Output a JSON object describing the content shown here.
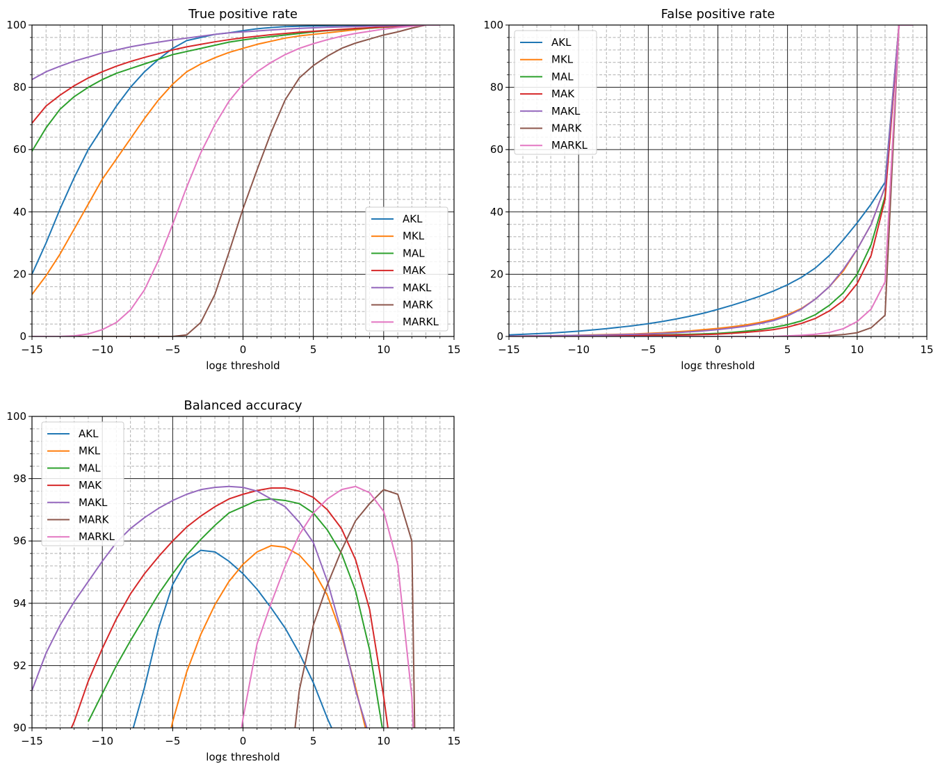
{
  "figure": {
    "colors": {
      "AKL": "#1f77b4",
      "MKL": "#ff7f0e",
      "MAL": "#2ca02c",
      "MAK": "#d62728",
      "MAKL": "#9467bd",
      "MARK": "#8c564b",
      "MARKL": "#e377c2"
    }
  },
  "chart_data": [
    {
      "type": "line",
      "title": "True positive rate",
      "xlabel": "logε threshold",
      "ylabel": "",
      "xlim": [
        -15,
        15
      ],
      "ylim": [
        0,
        100
      ],
      "xticks": [
        -15,
        -10,
        -5,
        0,
        5,
        10,
        15
      ],
      "yticks": [
        0,
        20,
        40,
        60,
        80,
        100
      ],
      "grid": "major solid, minor dashed",
      "legend": "lower right",
      "x": [
        -15,
        -14,
        -13,
        -12,
        -11,
        -10,
        -9,
        -8,
        -7,
        -6,
        -5,
        -4,
        -3,
        -2,
        -1,
        0,
        1,
        2,
        3,
        4,
        5,
        6,
        7,
        8,
        9,
        10,
        11,
        12,
        13,
        14
      ],
      "series": [
        {
          "name": "AKL",
          "values": [
            20,
            30,
            41,
            51,
            60,
            67,
            74,
            80,
            85,
            89,
            92.5,
            95,
            96,
            97,
            97.5,
            98.2,
            98.8,
            99.2,
            99.5,
            99.6,
            99.7,
            99.8,
            99.85,
            99.9,
            99.9,
            99.95,
            100,
            100,
            100,
            100
          ]
        },
        {
          "name": "MKL",
          "values": [
            13.5,
            19.5,
            26.5,
            34.5,
            42.5,
            50.5,
            57,
            63.5,
            70,
            76,
            81,
            85,
            87.5,
            89.5,
            91.2,
            92.5,
            93.8,
            94.8,
            95.8,
            96.5,
            97,
            97.5,
            98,
            98.5,
            99,
            99.3,
            99.6,
            99.8,
            100,
            100
          ]
        },
        {
          "name": "MAL",
          "values": [
            59.5,
            67,
            73,
            77,
            80,
            82.5,
            84.5,
            86,
            87.5,
            89,
            90.5,
            91.5,
            92.5,
            93.5,
            94.5,
            95.2,
            95.8,
            96.3,
            96.8,
            97.3,
            97.8,
            98.2,
            98.5,
            98.8,
            99,
            99.3,
            99.5,
            99.8,
            100,
            100
          ]
        },
        {
          "name": "MAK",
          "values": [
            68.5,
            74,
            77.5,
            80.5,
            83,
            85,
            86.8,
            88.3,
            89.6,
            90.8,
            92,
            93,
            93.8,
            94.6,
            95.3,
            95.9,
            96.4,
            96.9,
            97.3,
            97.7,
            98,
            98.3,
            98.6,
            98.9,
            99.1,
            99.4,
            99.6,
            99.8,
            100,
            100
          ]
        },
        {
          "name": "MAKL",
          "values": [
            82.5,
            85,
            86.8,
            88.4,
            89.7,
            91,
            92,
            93,
            93.8,
            94.5,
            95.2,
            95.8,
            96.4,
            97,
            97.5,
            97.8,
            98.1,
            98.4,
            98.7,
            98.9,
            99.1,
            99.3,
            99.4,
            99.5,
            99.6,
            99.7,
            99.8,
            99.9,
            100,
            100
          ]
        },
        {
          "name": "MARK",
          "values": [
            0,
            0,
            0,
            0,
            0,
            0,
            0,
            0,
            0,
            0,
            0,
            0.5,
            4.5,
            13.5,
            27,
            41,
            53.5,
            65.5,
            76,
            83,
            87,
            90,
            92.5,
            94.2,
            95.5,
            96.8,
            97.8,
            99,
            100,
            100
          ]
        },
        {
          "name": "MARKL",
          "values": [
            0,
            0,
            0,
            0.2,
            0.8,
            2.2,
            4.5,
            8.5,
            15,
            24.5,
            36,
            48,
            59,
            68,
            75.5,
            81,
            85,
            88,
            90.5,
            92.5,
            94,
            95.3,
            96.4,
            97.3,
            98,
            98.7,
            99.2,
            99.6,
            100,
            100
          ]
        }
      ]
    },
    {
      "type": "line",
      "title": "False positive rate",
      "xlabel": "logε threshold",
      "ylabel": "",
      "xlim": [
        -15,
        15
      ],
      "ylim": [
        0,
        100
      ],
      "xticks": [
        -15,
        -10,
        -5,
        0,
        5,
        10,
        15
      ],
      "yticks": [
        0,
        20,
        40,
        60,
        80,
        100
      ],
      "grid": "major solid, minor dashed",
      "legend": "upper left",
      "x": [
        -15,
        -14,
        -13,
        -12,
        -11,
        -10,
        -9,
        -8,
        -7,
        -6,
        -5,
        -4,
        -3,
        -2,
        -1,
        0,
        1,
        2,
        3,
        4,
        5,
        6,
        7,
        8,
        9,
        10,
        11,
        12,
        13,
        14
      ],
      "series": [
        {
          "name": "AKL",
          "values": [
            0.5,
            0.7,
            0.9,
            1.1,
            1.4,
            1.7,
            2.1,
            2.5,
            3,
            3.5,
            4.1,
            4.8,
            5.6,
            6.5,
            7.5,
            8.7,
            10,
            11.4,
            12.9,
            14.6,
            16.6,
            19,
            22,
            26,
            31,
            36.5,
            42.5,
            49.5,
            100,
            100
          ]
        },
        {
          "name": "MKL",
          "values": [
            0.1,
            0.15,
            0.2,
            0.25,
            0.3,
            0.4,
            0.5,
            0.6,
            0.7,
            0.8,
            1,
            1.2,
            1.5,
            1.8,
            2.2,
            2.6,
            3.1,
            3.7,
            4.5,
            5.5,
            7,
            9,
            12,
            16,
            21,
            28,
            36,
            48,
            100,
            100
          ]
        },
        {
          "name": "MAL",
          "values": [
            0.05,
            0.07,
            0.1,
            0.13,
            0.17,
            0.2,
            0.25,
            0.3,
            0.35,
            0.4,
            0.45,
            0.5,
            0.6,
            0.7,
            0.85,
            1,
            1.3,
            1.7,
            2.2,
            2.9,
            3.8,
            5,
            7,
            10,
            14,
            20,
            29.5,
            45,
            100,
            100
          ]
        },
        {
          "name": "MAK",
          "values": [
            0.05,
            0.06,
            0.08,
            0.1,
            0.12,
            0.15,
            0.18,
            0.22,
            0.26,
            0.3,
            0.35,
            0.4,
            0.45,
            0.5,
            0.6,
            0.75,
            1,
            1.3,
            1.7,
            2.2,
            3,
            4.2,
            5.8,
            8.2,
            11.5,
            17,
            26,
            44,
            100,
            100
          ]
        },
        {
          "name": "MAKL",
          "values": [
            0.1,
            0.15,
            0.2,
            0.25,
            0.3,
            0.35,
            0.4,
            0.5,
            0.6,
            0.7,
            0.8,
            1,
            1.2,
            1.5,
            1.8,
            2.2,
            2.7,
            3.3,
            4.1,
            5.1,
            6.6,
            8.8,
            12,
            16,
            21.5,
            28,
            36,
            48,
            100,
            100
          ]
        },
        {
          "name": "MARK",
          "values": [
            0,
            0,
            0,
            0,
            0,
            0,
            0,
            0,
            0,
            0,
            0,
            0,
            0,
            0,
            0,
            0,
            0,
            0,
            0,
            0,
            0,
            0.1,
            0.2,
            0.3,
            0.6,
            1.2,
            2.8,
            6.8,
            100,
            100
          ]
        },
        {
          "name": "MARKL",
          "values": [
            0,
            0,
            0,
            0,
            0,
            0,
            0,
            0,
            0,
            0,
            0,
            0,
            0,
            0,
            0,
            0,
            0,
            0,
            0,
            0,
            0.2,
            0.4,
            0.7,
            1.3,
            2.5,
            4.8,
            8.8,
            17.5,
            100,
            100
          ]
        }
      ]
    },
    {
      "type": "line",
      "title": "Balanced accuracy",
      "xlabel": "logε threshold",
      "ylabel": "",
      "xlim": [
        -15,
        15
      ],
      "ylim": [
        90,
        100
      ],
      "xticks": [
        -15,
        -10,
        -5,
        0,
        5,
        10,
        15
      ],
      "yticks": [
        90,
        92,
        94,
        96,
        98,
        100
      ],
      "grid": "major solid, minor dashed",
      "legend": "upper left",
      "series": [
        {
          "name": "AKL",
          "x": [
            -7.8,
            -7,
            -6,
            -5,
            -4,
            -3,
            -2,
            -1,
            0,
            1,
            2,
            3,
            4,
            5,
            6,
            6.3
          ],
          "values": [
            90,
            91.3,
            93.2,
            94.6,
            95.4,
            95.7,
            95.65,
            95.35,
            94.95,
            94.45,
            93.85,
            93.2,
            92.4,
            91.45,
            90.3,
            90
          ]
        },
        {
          "name": "MKL",
          "x": [
            -5.1,
            -5,
            -4,
            -3,
            -2,
            -1,
            0,
            1,
            2,
            3,
            4,
            5,
            6,
            7,
            8,
            8.7
          ],
          "values": [
            90,
            90.2,
            91.8,
            93.0,
            93.95,
            94.7,
            95.25,
            95.65,
            95.85,
            95.8,
            95.55,
            95.05,
            94.25,
            93.0,
            91.3,
            90
          ]
        },
        {
          "name": "MAL",
          "x": [
            -11,
            -10,
            -9,
            -8,
            -7,
            -6,
            -5,
            -4,
            -3,
            -2,
            -1,
            0,
            1,
            2,
            3,
            4,
            5,
            6,
            7,
            8,
            9,
            9.9
          ],
          "values": [
            90.2,
            91.1,
            92.0,
            92.8,
            93.55,
            94.3,
            94.95,
            95.55,
            96.05,
            96.5,
            96.9,
            97.1,
            97.3,
            97.35,
            97.3,
            97.2,
            96.9,
            96.35,
            95.6,
            94.4,
            92.5,
            90
          ]
        },
        {
          "name": "MAK",
          "x": [
            -12.2,
            -12,
            -11,
            -10,
            -9,
            -8,
            -7,
            -6,
            -5,
            -4,
            -3,
            -2,
            -1,
            0,
            1,
            2,
            3,
            4,
            5,
            6,
            7,
            8,
            9,
            10,
            10.3
          ],
          "values": [
            90,
            90.2,
            91.5,
            92.55,
            93.5,
            94.3,
            94.95,
            95.5,
            96.0,
            96.45,
            96.8,
            97.1,
            97.35,
            97.5,
            97.62,
            97.7,
            97.7,
            97.6,
            97.4,
            97.0,
            96.4,
            95.4,
            93.8,
            91.0,
            90
          ]
        },
        {
          "name": "MAKL",
          "x": [
            -15,
            -14,
            -13,
            -12,
            -11,
            -10,
            -9,
            -8,
            -7,
            -6,
            -5,
            -4,
            -3,
            -2,
            -1,
            0,
            1,
            2,
            3,
            4,
            5,
            6,
            7,
            8,
            8.8
          ],
          "values": [
            91.2,
            92.4,
            93.3,
            94.05,
            94.7,
            95.35,
            95.95,
            96.4,
            96.75,
            97.05,
            97.3,
            97.5,
            97.65,
            97.72,
            97.75,
            97.72,
            97.6,
            97.35,
            97.1,
            96.6,
            95.95,
            94.7,
            93.1,
            91.2,
            90
          ]
        },
        {
          "name": "MARK",
          "x": [
            3.7,
            4,
            5,
            6,
            7,
            8,
            9,
            10,
            11,
            12,
            12.2
          ],
          "values": [
            90,
            91.2,
            93.3,
            94.6,
            95.7,
            96.65,
            97.2,
            97.65,
            97.5,
            96.0,
            90
          ]
        },
        {
          "name": "MARKL",
          "x": [
            -0.1,
            0,
            1,
            2,
            3,
            4,
            5,
            6,
            7,
            8,
            9,
            10,
            11,
            12,
            12.1
          ],
          "values": [
            90,
            90.3,
            92.7,
            94.0,
            95.2,
            96.2,
            96.9,
            97.35,
            97.65,
            97.75,
            97.55,
            96.95,
            95.25,
            91.0,
            90
          ]
        }
      ]
    }
  ]
}
